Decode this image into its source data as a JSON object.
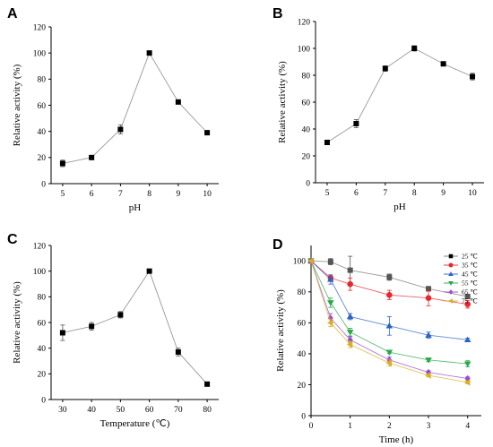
{
  "chart_data": [
    {
      "panel": "A",
      "type": "line",
      "xlabel": "pH",
      "ylabel": "Relative activity (%)",
      "xlim": [
        4.6,
        10.4
      ],
      "xticks": [
        5,
        6,
        7,
        8,
        9,
        10
      ],
      "ylim": [
        0,
        120
      ],
      "yticks": [
        0,
        20,
        40,
        60,
        80,
        100,
        120
      ],
      "series": [
        {
          "color": "#555555",
          "marker": "square",
          "x": [
            5,
            6,
            7,
            8,
            9,
            10
          ],
          "values": [
            15.5,
            20,
            41.5,
            100,
            62.5,
            39
          ],
          "err": [
            2.5,
            0.8,
            3.5,
            0.8,
            1.5,
            0.8
          ]
        }
      ]
    },
    {
      "panel": "B",
      "type": "line",
      "xlabel": "pH",
      "ylabel": "Relative activity (%)",
      "xlim": [
        4.6,
        10.4
      ],
      "xticks": [
        5,
        6,
        7,
        8,
        9,
        10
      ],
      "ylim": [
        0,
        120
      ],
      "yticks": [
        0,
        20,
        40,
        60,
        80,
        100,
        120
      ],
      "series": [
        {
          "color": "#555555",
          "marker": "square",
          "x": [
            5,
            6,
            7,
            8,
            9,
            10
          ],
          "values": [
            30,
            44,
            85,
            100,
            88.5,
            79
          ],
          "err": [
            0.8,
            3,
            2,
            2,
            1,
            2.5
          ]
        }
      ]
    },
    {
      "panel": "C",
      "type": "line",
      "xlabel": "Temperature (℃)",
      "ylabel": "Relative activity (%)",
      "xlim": [
        26,
        84
      ],
      "xticks": [
        30,
        40,
        50,
        60,
        70,
        80
      ],
      "ylim": [
        0,
        120
      ],
      "yticks": [
        0,
        20,
        40,
        60,
        80,
        100,
        120
      ],
      "series": [
        {
          "color": "#555555",
          "marker": "square",
          "x": [
            30,
            40,
            50,
            60,
            70,
            80
          ],
          "values": [
            52,
            57,
            66,
            100,
            37,
            12
          ],
          "err": [
            6,
            3,
            2.5,
            0.8,
            3,
            0.8
          ]
        }
      ]
    },
    {
      "panel": "D",
      "type": "line",
      "xlabel": "Time (h)",
      "ylabel": "Relative activity (%)",
      "xlim": [
        0,
        4.35
      ],
      "xticks": [
        0,
        1,
        2,
        3,
        4
      ],
      "ylim": [
        0,
        110
      ],
      "yticks": [
        0,
        20,
        40,
        60,
        80,
        100
      ],
      "legend_position": "top-right",
      "x": [
        0,
        0.5,
        1,
        2,
        3,
        4
      ],
      "series": [
        {
          "name": "25 ℃",
          "color": "#555555",
          "marker": "square",
          "values": [
            100,
            99.5,
            94,
            89.5,
            82,
            77
          ],
          "err": [
            0,
            2,
            9,
            2,
            1.5,
            1.5
          ]
        },
        {
          "name": "35 ℃",
          "color": "#e8262b",
          "marker": "circle",
          "values": [
            100,
            89,
            85,
            78,
            76,
            72
          ],
          "err": [
            0,
            2,
            4,
            3,
            5,
            2.5
          ]
        },
        {
          "name": "45 ℃",
          "color": "#2a63c8",
          "marker": "triangle-up",
          "values": [
            100,
            88,
            64,
            58,
            52,
            49
          ],
          "err": [
            0,
            3,
            2,
            6,
            2,
            1
          ]
        },
        {
          "name": "55 ℃",
          "color": "#27a84a",
          "marker": "triangle-down",
          "values": [
            100,
            73,
            54,
            41,
            36,
            33.5
          ],
          "err": [
            0,
            3,
            2.5,
            1,
            1,
            2
          ]
        },
        {
          "name": "65 ℃",
          "color": "#9a49d1",
          "marker": "diamond",
          "values": [
            100,
            63,
            49,
            36,
            28,
            24
          ],
          "err": [
            0,
            3,
            2,
            2,
            1,
            1
          ]
        },
        {
          "name": "75 ℃",
          "color": "#d9b021",
          "marker": "triangle-left",
          "values": [
            100,
            60,
            46,
            34,
            26,
            21.5
          ],
          "err": [
            0,
            2.5,
            2,
            2,
            1,
            1
          ]
        }
      ]
    }
  ]
}
